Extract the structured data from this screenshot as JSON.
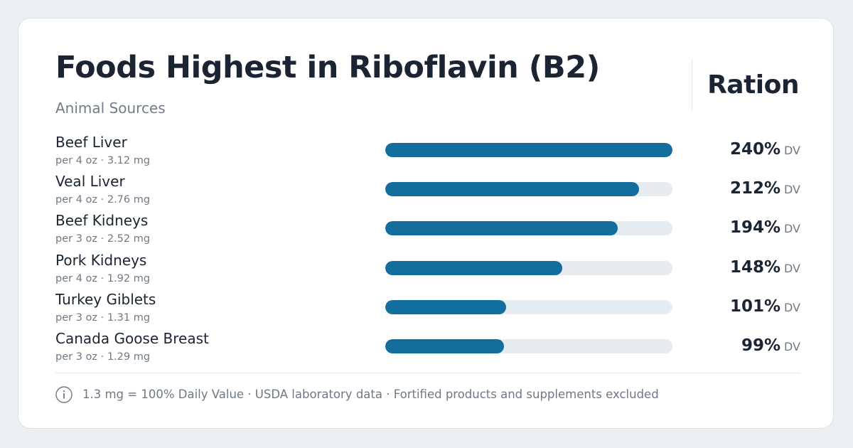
{
  "header": {
    "title": "Foods Highest in Riboflavin (B2)",
    "subtitle": "Animal Sources",
    "brand": "Ration"
  },
  "colors": {
    "bar": "#136e9d",
    "track": "#e7ecf1",
    "text": "#1a2433",
    "muted": "#6f7985"
  },
  "chart_data": {
    "type": "bar",
    "orientation": "horizontal",
    "title": "Foods Highest in Riboflavin (B2)",
    "subtitle": "Animal Sources",
    "xlim": [
      0,
      240
    ],
    "grid": false,
    "unit": "DV",
    "categories": [
      "Beef Liver",
      "Veal Liver",
      "Beef Kidneys",
      "Pork Kidneys",
      "Turkey Giblets",
      "Canada Goose Breast"
    ],
    "values": [
      240,
      212,
      194,
      148,
      101,
      99
    ],
    "rows": [
      {
        "name": "Beef Liver",
        "serving": "per 4 oz · 3.12 mg",
        "value": 240,
        "label": "240%"
      },
      {
        "name": "Veal Liver",
        "serving": "per 4 oz · 2.76 mg",
        "value": 212,
        "label": "212%"
      },
      {
        "name": "Beef Kidneys",
        "serving": "per 3 oz · 2.52 mg",
        "value": 194,
        "label": "194%"
      },
      {
        "name": "Pork Kidneys",
        "serving": "per 4 oz · 1.92 mg",
        "value": 148,
        "label": "148%"
      },
      {
        "name": "Turkey Giblets",
        "serving": "per 3 oz · 1.31 mg",
        "value": 101,
        "label": "101%"
      },
      {
        "name": "Canada Goose Breast",
        "serving": "per 3 oz · 1.29 mg",
        "value": 99,
        "label": "99%"
      }
    ]
  },
  "footer": {
    "icon": "info-icon",
    "note": "1.3 mg = 100% Daily Value · USDA laboratory data · Fortified products and supplements excluded"
  }
}
